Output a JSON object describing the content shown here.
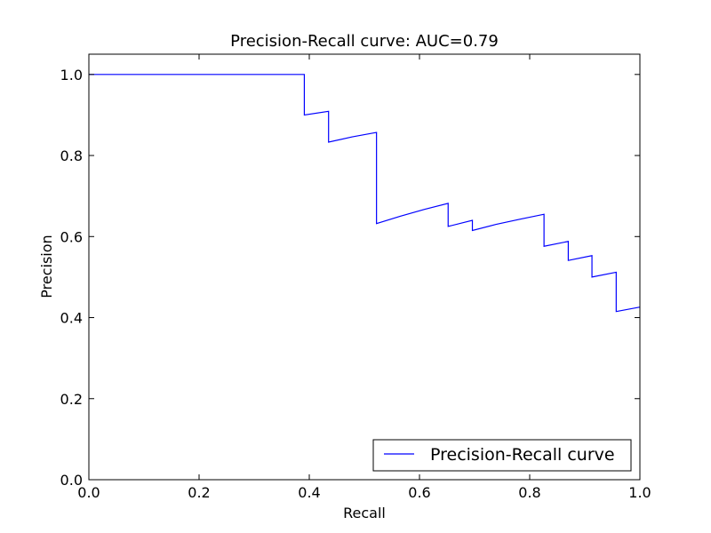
{
  "chart_data": {
    "type": "line",
    "title": "Precision-Recall curve: AUC=0.79",
    "xlabel": "Recall",
    "ylabel": "Precision",
    "xlim": [
      0.0,
      1.0
    ],
    "ylim": [
      0.0,
      1.05
    ],
    "xticks": [
      "0.0",
      "0.2",
      "0.4",
      "0.6",
      "0.8",
      "1.0"
    ],
    "yticks": [
      "0.0",
      "0.2",
      "0.4",
      "0.6",
      "0.8",
      "1.0"
    ],
    "grid": false,
    "legend_position": "bottom-right",
    "series": [
      {
        "name": "Precision-Recall curve",
        "color": "#0000ff",
        "x": [
          0.0,
          0.391,
          0.391,
          0.435,
          0.435,
          0.478,
          0.522,
          0.522,
          0.565,
          0.609,
          0.652,
          0.652,
          0.696,
          0.696,
          0.739,
          0.783,
          0.826,
          0.826,
          0.87,
          0.87,
          0.913,
          0.913,
          0.957,
          0.957,
          1.0
        ],
        "y": [
          1.0,
          1.0,
          0.9,
          0.909,
          0.833,
          0.846,
          0.857,
          0.632,
          0.65,
          0.667,
          0.682,
          0.625,
          0.64,
          0.615,
          0.63,
          0.643,
          0.655,
          0.576,
          0.588,
          0.541,
          0.553,
          0.5,
          0.512,
          0.415,
          0.426
        ]
      }
    ]
  }
}
